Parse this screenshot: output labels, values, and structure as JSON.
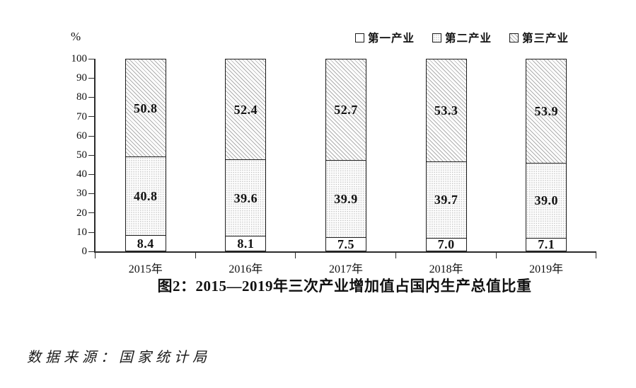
{
  "chart_data": {
    "type": "bar",
    "stacked": true,
    "title": "图2：2015—2019年三次产业增加值占国内生产总值比重",
    "unit_label": "%",
    "categories": [
      "2015年",
      "2016年",
      "2017年",
      "2018年",
      "2019年"
    ],
    "series": [
      {
        "name": "第一产业",
        "pattern": "plain",
        "values": [
          8.4,
          8.1,
          7.5,
          7.0,
          7.1
        ]
      },
      {
        "name": "第二产业",
        "pattern": "dots",
        "values": [
          40.8,
          39.6,
          39.9,
          39.7,
          39.0
        ]
      },
      {
        "name": "第三产业",
        "pattern": "hatch",
        "values": [
          50.8,
          52.4,
          52.7,
          53.3,
          53.9
        ]
      }
    ],
    "ylim": [
      0,
      100
    ],
    "yticks": [
      0,
      10,
      20,
      30,
      40,
      50,
      60,
      70,
      80,
      90,
      100
    ],
    "legend_position": "top-right",
    "grid": false
  },
  "source_note": "数据来源：国家统计局",
  "colors": {
    "background": "#ffffff",
    "axis": "#2b2b2b",
    "bar_border": "#1c1c1c",
    "hatch_line": "#aeaeae",
    "dot_fill": "#c3c3c3",
    "text": "#111111"
  }
}
